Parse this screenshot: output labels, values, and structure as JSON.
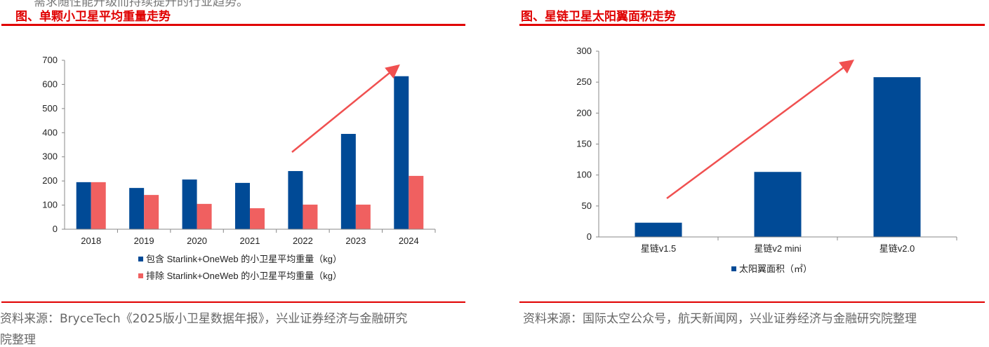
{
  "top_text": "需求随性能升级而持续提升的行业趋势。",
  "left": {
    "title": "图、单颗小卫星平均重量走势",
    "source": "资料来源：BryceTech《2025版小卫星数据年报》，兴业证券经济与金融研究",
    "source_line2": "院整理"
  },
  "right": {
    "title": "图、星链卫星太阳翼面积走势",
    "source": "资料来源：国际太空公众号，航天新闻网，兴业证券经济与金融研究院整理"
  },
  "chart_data": [
    {
      "type": "bar",
      "title": "图、单颗小卫星平均重量走势",
      "categories": [
        "2018",
        "2019",
        "2020",
        "2021",
        "2022",
        "2023",
        "2024"
      ],
      "series": [
        {
          "name": "包含 Starlink+OneWeb 的小卫星平均重量（kg）",
          "color": "#004a96",
          "values": [
            195,
            171,
            206,
            192,
            241,
            395,
            634
          ]
        },
        {
          "name": "排除 Starlink+OneWeb 的小卫星平均重量（kg）",
          "color": "#f06060",
          "values": [
            195,
            142,
            105,
            87,
            102,
            102,
            221
          ]
        }
      ],
      "ylim": [
        0,
        700
      ],
      "yticks": [
        0,
        100,
        200,
        300,
        400,
        500,
        600,
        700
      ],
      "legend": "bottom"
    },
    {
      "type": "bar",
      "title": "图、星链卫星太阳翼面积走势",
      "categories": [
        "星链v1.5",
        "星链v2 mini",
        "星链v2.0"
      ],
      "series": [
        {
          "name": "太阳翼面积（㎡）",
          "color": "#004a96",
          "values": [
            23,
            105,
            258
          ]
        }
      ],
      "ylim": [
        0,
        300
      ],
      "yticks": [
        0,
        50,
        100,
        150,
        200,
        250,
        300
      ],
      "legend": "bottom"
    }
  ]
}
